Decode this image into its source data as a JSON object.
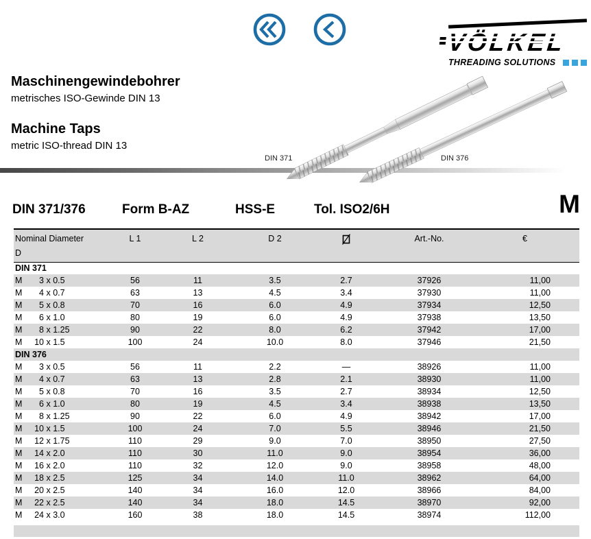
{
  "colors": {
    "accent_blue": "#1d6da6",
    "logo_blue": "#3aa5dc",
    "row_shade": "#d9d9d9"
  },
  "nav": {
    "first_icon": "chevron-double-left-icon",
    "back_icon": "chevron-left-icon"
  },
  "logo": {
    "name": "VÖLKEL",
    "tagline": "THREADING SOLUTIONS"
  },
  "header": {
    "title_de": "Maschinengewindebohrer",
    "subtitle_de": "metrisches ISO-Gewinde DIN 13",
    "title_en": "Machine Taps",
    "subtitle_en": "metric ISO-thread DIN 13",
    "image_labels": [
      "DIN 371",
      "DIN 376"
    ]
  },
  "product_line": {
    "din": "DIN 371/376",
    "form": "Form B-AZ",
    "material": "HSS-E",
    "tolerance": "Tol. ISO2/6H",
    "thread_letter": "M"
  },
  "table": {
    "header": {
      "col1_line1": "Nominal Diameter",
      "col1_line2": "D",
      "l1": "L 1",
      "l2": "L 2",
      "d2": "D 2",
      "drill_symbol": "⌀",
      "art": "Art.-No.",
      "currency": "€"
    },
    "rows": [
      {
        "type": "section",
        "label": "DIN 371"
      },
      {
        "type": "data",
        "m": "M",
        "size": "3 x 0.5",
        "l1": "56",
        "l2": "11",
        "d2": "3.5",
        "drill": "2.7",
        "art": "37926",
        "price": "11,00"
      },
      {
        "type": "data",
        "m": "M",
        "size": "4 x 0.7",
        "l1": "63",
        "l2": "13",
        "d2": "4.5",
        "drill": "3.4",
        "art": "37930",
        "price": "11,00"
      },
      {
        "type": "data",
        "m": "M",
        "size": "5 x 0.8",
        "l1": "70",
        "l2": "16",
        "d2": "6.0",
        "drill": "4.9",
        "art": "37934",
        "price": "12,50"
      },
      {
        "type": "data",
        "m": "M",
        "size": "6 x 1.0",
        "l1": "80",
        "l2": "19",
        "d2": "6.0",
        "drill": "4.9",
        "art": "37938",
        "price": "13,50"
      },
      {
        "type": "data",
        "m": "M",
        "size": "8 x 1.25",
        "l1": "90",
        "l2": "22",
        "d2": "8.0",
        "drill": "6.2",
        "art": "37942",
        "price": "17,00"
      },
      {
        "type": "data",
        "m": "M",
        "size": "10 x 1.5",
        "l1": "100",
        "l2": "24",
        "d2": "10.0",
        "drill": "8.0",
        "art": "37946",
        "price": "21,50"
      },
      {
        "type": "section",
        "label": "DIN 376"
      },
      {
        "type": "data",
        "m": "M",
        "size": "3 x 0.5",
        "l1": "56",
        "l2": "11",
        "d2": "2.2",
        "drill": "—",
        "art": "38926",
        "price": "11,00"
      },
      {
        "type": "data",
        "m": "M",
        "size": "4 x 0.7",
        "l1": "63",
        "l2": "13",
        "d2": "2.8",
        "drill": "2.1",
        "art": "38930",
        "price": "11,00"
      },
      {
        "type": "data",
        "m": "M",
        "size": "5 x 0.8",
        "l1": "70",
        "l2": "16",
        "d2": "3.5",
        "drill": "2.7",
        "art": "38934",
        "price": "12,50"
      },
      {
        "type": "data",
        "m": "M",
        "size": "6 x 1.0",
        "l1": "80",
        "l2": "19",
        "d2": "4.5",
        "drill": "3.4",
        "art": "38938",
        "price": "13,50"
      },
      {
        "type": "data",
        "m": "M",
        "size": "8 x 1.25",
        "l1": "90",
        "l2": "22",
        "d2": "6.0",
        "drill": "4.9",
        "art": "38942",
        "price": "17,00"
      },
      {
        "type": "data",
        "m": "M",
        "size": "10 x 1.5",
        "l1": "100",
        "l2": "24",
        "d2": "7.0",
        "drill": "5.5",
        "art": "38946",
        "price": "21,50"
      },
      {
        "type": "data",
        "m": "M",
        "size": "12 x 1.75",
        "l1": "110",
        "l2": "29",
        "d2": "9.0",
        "drill": "7.0",
        "art": "38950",
        "price": "27,50"
      },
      {
        "type": "data",
        "m": "M",
        "size": "14 x 2.0",
        "l1": "110",
        "l2": "30",
        "d2": "11.0",
        "drill": "9.0",
        "art": "38954",
        "price": "36,00"
      },
      {
        "type": "data",
        "m": "M",
        "size": "16 x 2.0",
        "l1": "110",
        "l2": "32",
        "d2": "12.0",
        "drill": "9.0",
        "art": "38958",
        "price": "48,00"
      },
      {
        "type": "data",
        "m": "M",
        "size": "18 x 2.5",
        "l1": "125",
        "l2": "34",
        "d2": "14.0",
        "drill": "11.0",
        "art": "38962",
        "price": "64,00"
      },
      {
        "type": "data",
        "m": "M",
        "size": "20 x 2.5",
        "l1": "140",
        "l2": "34",
        "d2": "16.0",
        "drill": "12.0",
        "art": "38966",
        "price": "84,00"
      },
      {
        "type": "data",
        "m": "M",
        "size": "22 x 2.5",
        "l1": "140",
        "l2": "34",
        "d2": "18.0",
        "drill": "14.5",
        "art": "38970",
        "price": "92,00"
      },
      {
        "type": "data",
        "m": "M",
        "size": "24 x 3.0",
        "l1": "160",
        "l2": "38",
        "d2": "18.0",
        "drill": "14.5",
        "art": "38974",
        "price": "112,00"
      }
    ]
  }
}
